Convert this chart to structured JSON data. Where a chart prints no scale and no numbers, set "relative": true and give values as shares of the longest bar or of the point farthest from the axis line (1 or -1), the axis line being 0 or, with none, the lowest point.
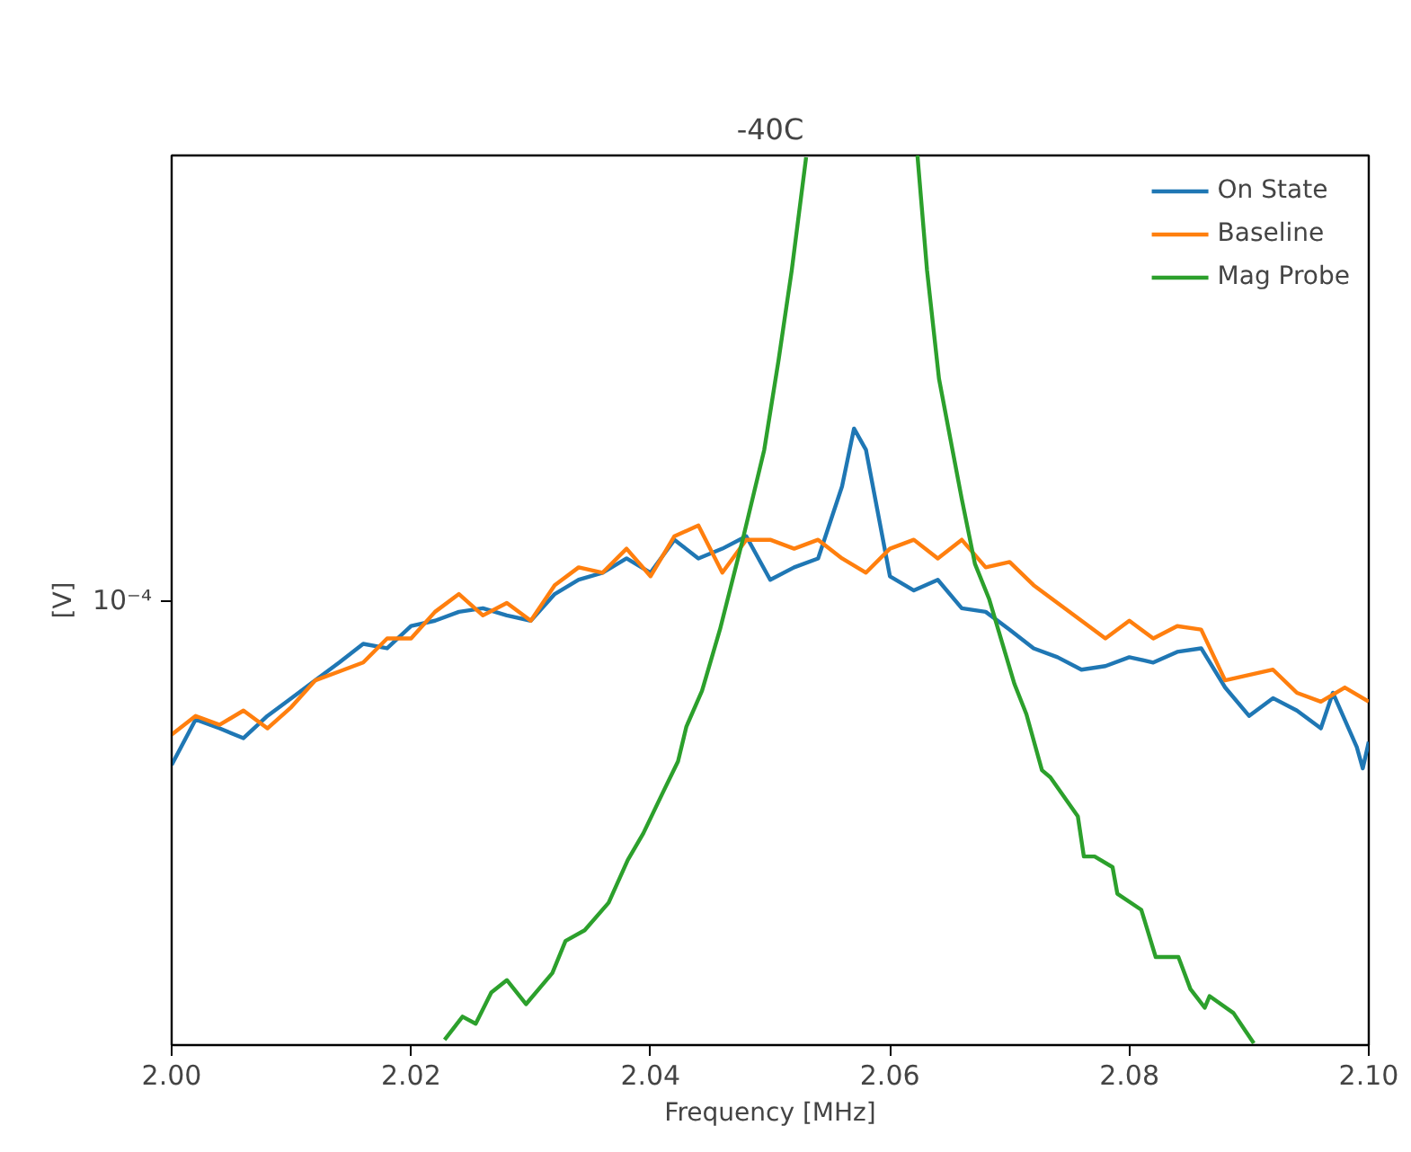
{
  "chart_data": {
    "type": "line",
    "title": "-40C",
    "xlabel": "Frequency [MHz]",
    "ylabel": "[V]",
    "relative": true,
    "grid": false,
    "legend": "top right",
    "marker": "none",
    "line_style": "solid",
    "xlim": [
      2.0,
      2.1
    ],
    "xticks": [
      {
        "value": 2.0,
        "label": "2.00"
      },
      {
        "value": 2.02,
        "label": "2.02"
      },
      {
        "value": 2.04,
        "label": "2.04"
      },
      {
        "value": 2.06,
        "label": "2.06"
      },
      {
        "value": 2.08,
        "label": "2.08"
      },
      {
        "value": 2.1,
        "label": "2.10"
      }
    ],
    "annotations": [
      "10⁻⁴"
    ],
    "series": [
      {
        "name": "On State",
        "color": "#1f77b4",
        "x": [
          2.0,
          2.002,
          2.004,
          2.006,
          2.008,
          2.01,
          2.012,
          2.014,
          2.016,
          2.018,
          2.02,
          2.022,
          2.024,
          2.026,
          2.028,
          2.03,
          2.032,
          2.034,
          2.036,
          2.038,
          2.04,
          2.042,
          2.044,
          2.046,
          2.048,
          2.05,
          2.052,
          2.054,
          2.056,
          2.057,
          2.058,
          2.06,
          2.062,
          2.064,
          2.066,
          2.068,
          2.07,
          2.072,
          2.074,
          2.076,
          2.078,
          2.08,
          2.082,
          2.084,
          2.086,
          2.088,
          2.09,
          2.092,
          2.094,
          2.096,
          2.097,
          2.099,
          2.0995,
          2.1
        ],
        "values": [
          0.315,
          0.366,
          0.356,
          0.345,
          0.37,
          0.39,
          0.41,
          0.43,
          0.451,
          0.446,
          0.471,
          0.477,
          0.487,
          0.491,
          0.483,
          0.477,
          0.507,
          0.523,
          0.531,
          0.547,
          0.531,
          0.568,
          0.547,
          0.558,
          0.572,
          0.523,
          0.537,
          0.547,
          0.628,
          0.693,
          0.669,
          0.527,
          0.511,
          0.523,
          0.491,
          0.487,
          0.467,
          0.446,
          0.436,
          0.422,
          0.426,
          0.436,
          0.43,
          0.442,
          0.446,
          0.402,
          0.37,
          0.39,
          0.376,
          0.356,
          0.396,
          0.335,
          0.311,
          0.341
        ]
      },
      {
        "name": "Baseline",
        "color": "#ff7f0e",
        "x": [
          2.0,
          2.002,
          2.004,
          2.006,
          2.008,
          2.01,
          2.012,
          2.014,
          2.016,
          2.018,
          2.02,
          2.022,
          2.024,
          2.026,
          2.028,
          2.03,
          2.032,
          2.034,
          2.036,
          2.038,
          2.04,
          2.042,
          2.044,
          2.046,
          2.048,
          2.05,
          2.052,
          2.054,
          2.056,
          2.058,
          2.06,
          2.062,
          2.064,
          2.066,
          2.068,
          2.07,
          2.072,
          2.074,
          2.076,
          2.078,
          2.08,
          2.082,
          2.084,
          2.086,
          2.088,
          2.09,
          2.092,
          2.094,
          2.096,
          2.098,
          2.1
        ],
        "values": [
          0.349,
          0.37,
          0.36,
          0.376,
          0.356,
          0.38,
          0.41,
          0.42,
          0.43,
          0.457,
          0.457,
          0.487,
          0.507,
          0.483,
          0.497,
          0.477,
          0.517,
          0.537,
          0.531,
          0.558,
          0.527,
          0.572,
          0.584,
          0.531,
          0.568,
          0.568,
          0.558,
          0.568,
          0.547,
          0.531,
          0.558,
          0.568,
          0.547,
          0.568,
          0.537,
          0.543,
          0.517,
          0.497,
          0.477,
          0.457,
          0.477,
          0.457,
          0.471,
          0.467,
          0.41,
          0.416,
          0.422,
          0.396,
          0.386,
          0.402,
          0.386
        ]
      },
      {
        "name": "Mag Probe",
        "color": "#2ca02c",
        "x": [
          2.0228,
          2.0243,
          2.0254,
          2.0267,
          2.028,
          2.0296,
          2.0318,
          2.0329,
          2.0345,
          2.0365,
          2.0381,
          2.0394,
          2.041,
          2.0423,
          2.043,
          2.0443,
          2.0458,
          2.0477,
          2.0495,
          2.0507,
          2.0518,
          2.053,
          2.057,
          2.0623,
          2.0631,
          2.0641,
          2.066,
          2.0671,
          2.0683,
          2.0704,
          2.0714,
          2.0727,
          2.0734,
          2.0757,
          2.0762,
          2.0771,
          2.0786,
          2.079,
          2.081,
          2.0822,
          2.0841,
          2.0851,
          2.0863,
          2.0867,
          2.0887,
          2.0897,
          2.0904
        ],
        "values": [
          0.006,
          0.032,
          0.024,
          0.059,
          0.073,
          0.046,
          0.081,
          0.117,
          0.129,
          0.16,
          0.208,
          0.238,
          0.283,
          0.319,
          0.358,
          0.398,
          0.467,
          0.568,
          0.669,
          0.77,
          0.871,
          0.998,
          null,
          1.0,
          0.871,
          0.749,
          0.614,
          0.541,
          0.501,
          0.406,
          0.372,
          0.309,
          0.301,
          0.257,
          0.212,
          0.212,
          0.2,
          0.17,
          0.152,
          0.099,
          0.099,
          0.063,
          0.042,
          0.055,
          0.036,
          0.016,
          0.002
        ]
      }
    ]
  }
}
